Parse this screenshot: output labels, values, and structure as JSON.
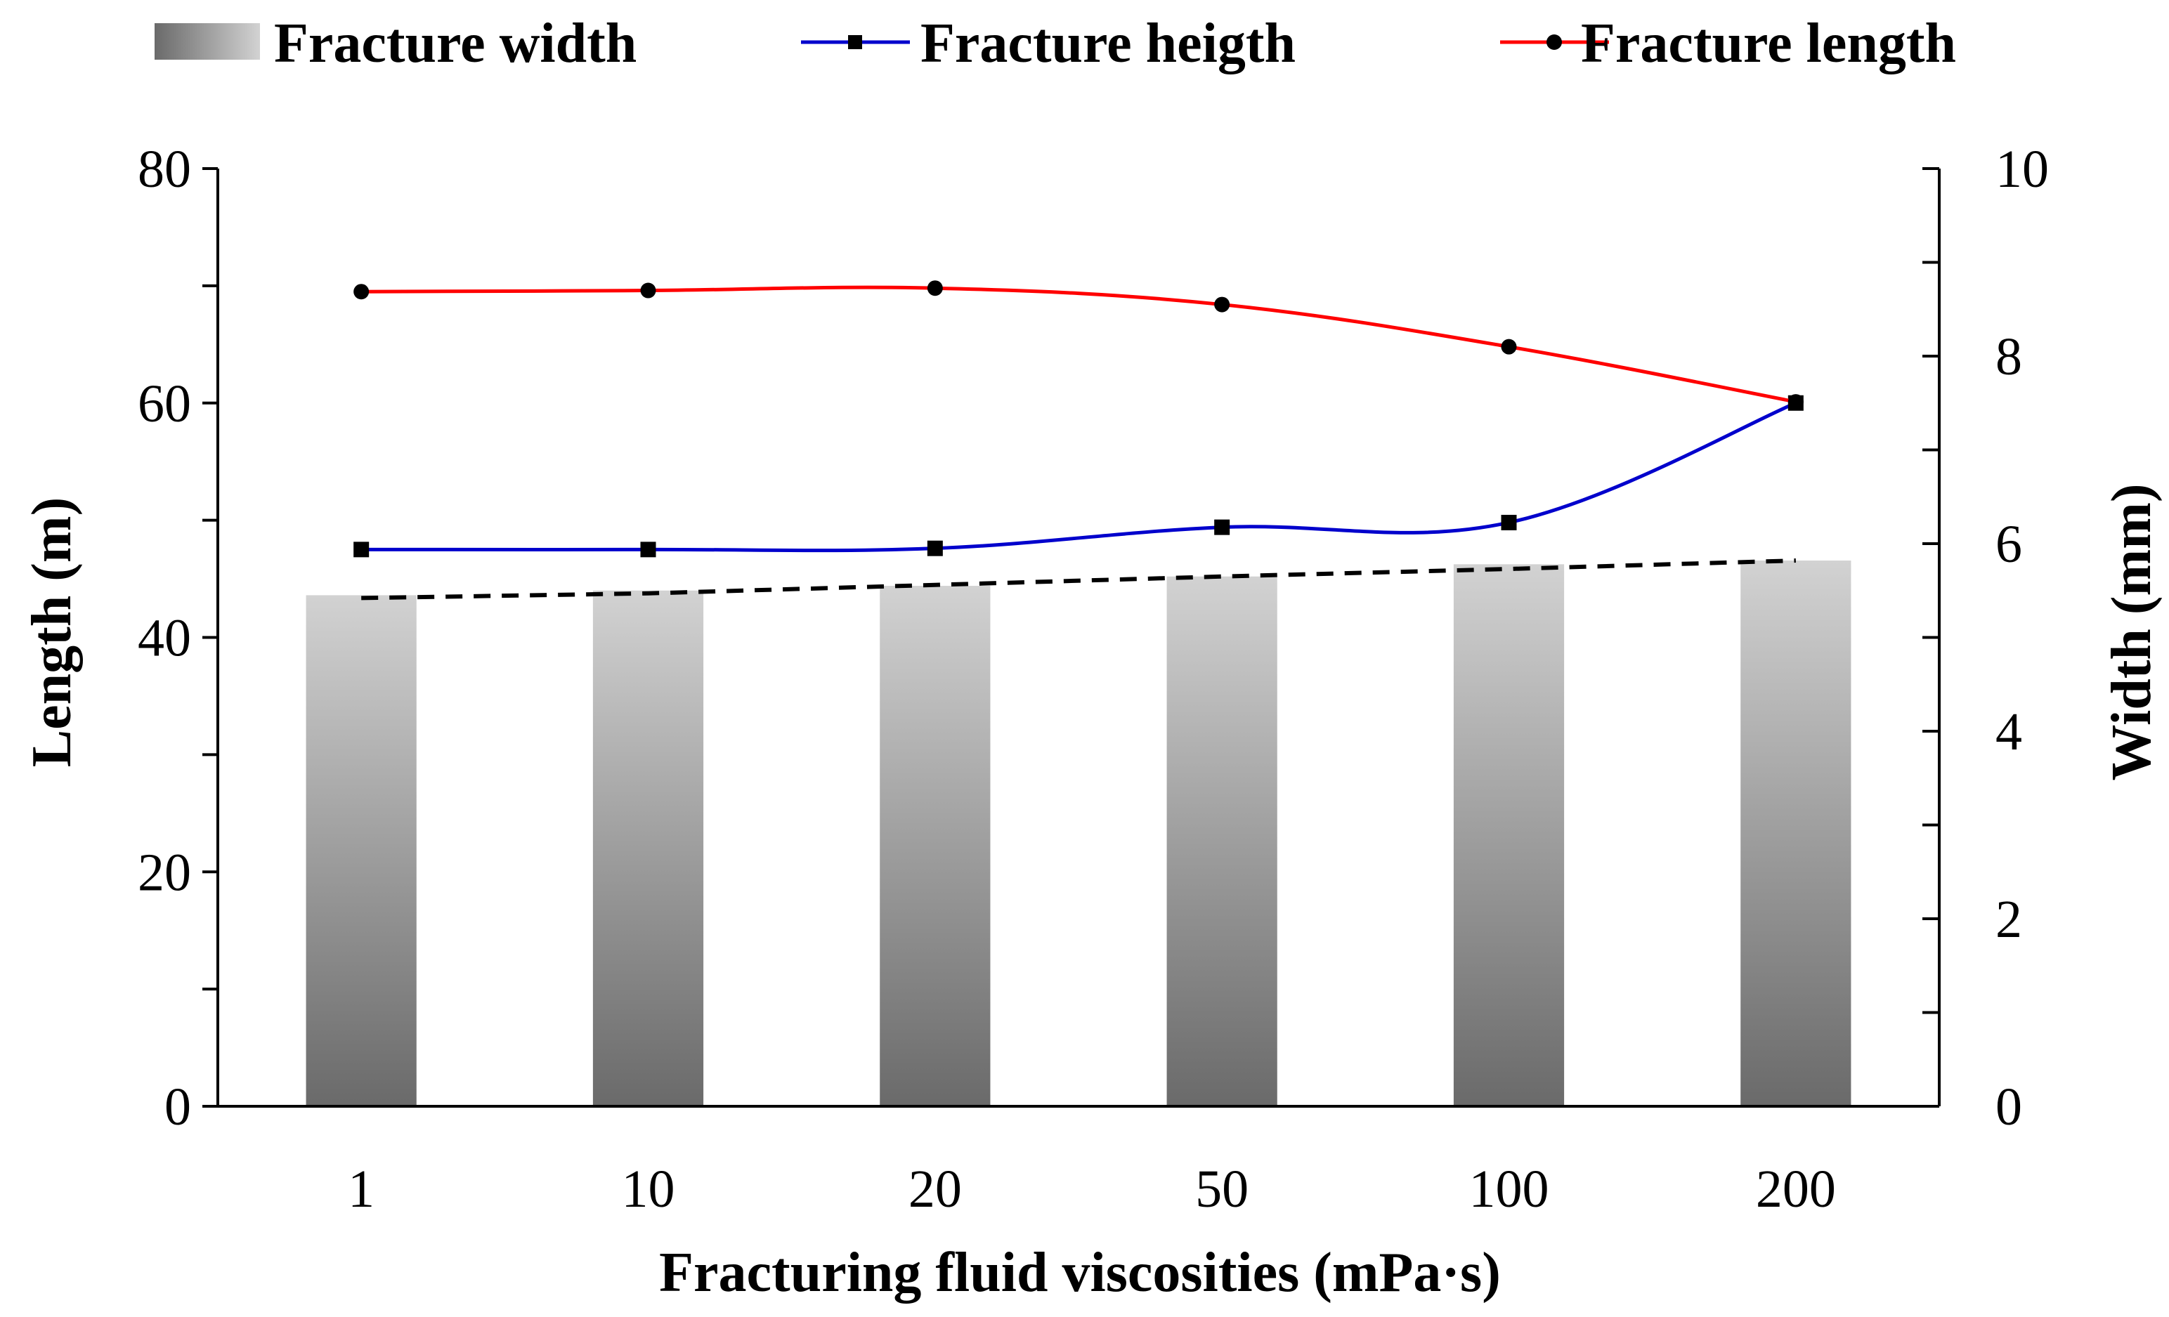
{
  "chart_data": {
    "type": "bar",
    "categories": [
      "1",
      "10",
      "20",
      "50",
      "100",
      "200"
    ],
    "xlabel": "Fracturing fluid viscosities (mPa·s)",
    "ylabel": "Length (m)",
    "y2label": "Width (mm)",
    "ylim": [
      0,
      80
    ],
    "y2lim": [
      0,
      10
    ],
    "yticks": [
      "0",
      "20",
      "40",
      "60",
      "80"
    ],
    "y2ticks": [
      "0",
      "2",
      "4",
      "6",
      "8",
      "10"
    ],
    "series": [
      {
        "name": "Fracture width",
        "type": "bar",
        "axis": "right",
        "values": [
          5.45,
          5.5,
          5.55,
          5.65,
          5.78,
          5.82
        ],
        "trendline": {
          "style": "dashed",
          "values": [
            5.42,
            5.47,
            5.56,
            5.65,
            5.73,
            5.82
          ]
        }
      },
      {
        "name": "Fracture heigth",
        "type": "line",
        "axis": "left",
        "marker": "square",
        "color": "#0000cc",
        "values": [
          47.5,
          47.5,
          47.6,
          49.4,
          49.8,
          60.0
        ]
      },
      {
        "name": "Fracture length",
        "type": "line",
        "axis": "left",
        "marker": "circle",
        "color": "#ff0000",
        "values": [
          69.5,
          69.6,
          69.8,
          68.4,
          64.8,
          60.1
        ]
      }
    ],
    "legend_position": "top",
    "grid": false
  }
}
